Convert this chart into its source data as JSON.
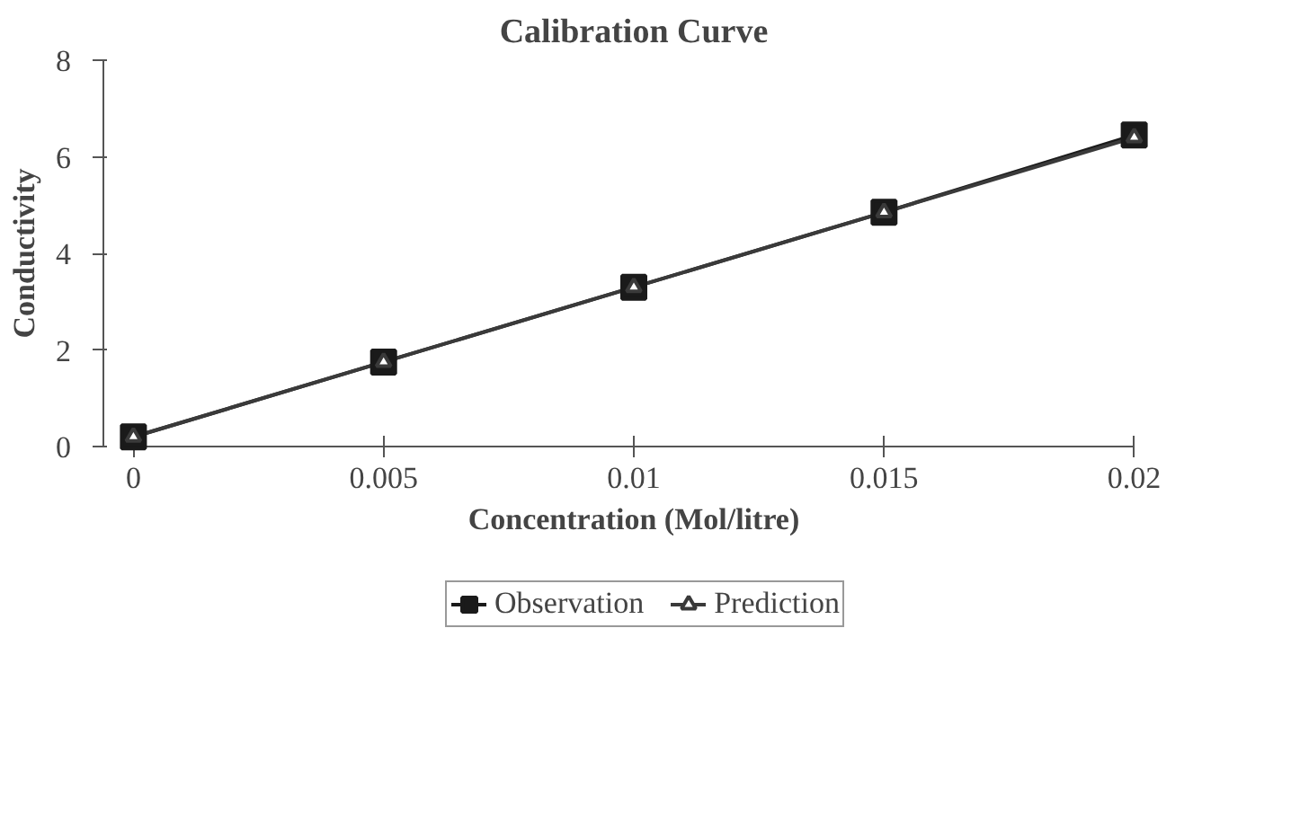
{
  "chart_data": {
    "type": "line",
    "title": "Calibration Curve",
    "xlabel": "Concentration (Mol/litre)",
    "ylabel": "Conductivity",
    "x": [
      0,
      0.005,
      0.01,
      0.015,
      0.02
    ],
    "series": [
      {
        "name": "Observation",
        "color": "#1a1a1a",
        "marker": "square",
        "values": [
          0.2,
          1.75,
          3.3,
          4.85,
          6.45
        ]
      },
      {
        "name": "Prediction",
        "color": "#3a3a3a",
        "marker": "triangle",
        "values": [
          0.2,
          1.75,
          3.3,
          4.85,
          6.4
        ]
      }
    ],
    "xlim": [
      0,
      0.02
    ],
    "ylim": [
      0,
      8
    ],
    "xticks": [
      0,
      0.005,
      0.01,
      0.015,
      0.02
    ],
    "yticks": [
      0,
      2,
      4,
      6,
      8
    ],
    "grid": false,
    "legend": "bottom",
    "line_style": "solid"
  }
}
